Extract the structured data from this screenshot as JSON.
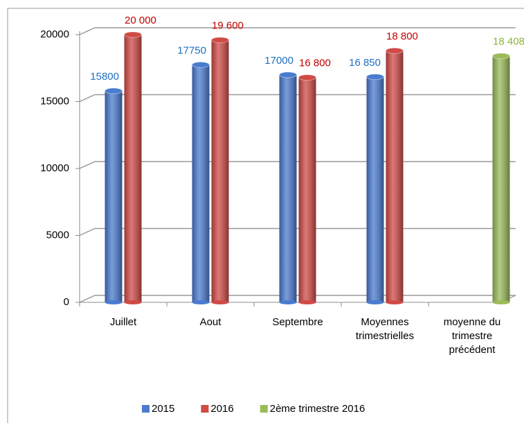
{
  "chart_data": {
    "type": "bar",
    "categories": [
      "Juillet",
      "Aout",
      "Septembre",
      "Moyennes trimestrielles",
      "moyenne du trimestre précédent"
    ],
    "series": [
      {
        "name": "2015",
        "color": "#4a7bd0",
        "label_color": "#1f6fc0",
        "values": [
          15800,
          17750,
          17000,
          16850,
          null
        ],
        "value_labels": [
          "15800",
          "17750",
          "17000",
          "16 850",
          null
        ]
      },
      {
        "name": "2016",
        "color": "#d04a46",
        "label_color": "#c00000",
        "values": [
          20000,
          19600,
          16800,
          18800,
          null
        ],
        "value_labels": [
          "20 000",
          "19 600",
          "16 800",
          "18 800",
          null
        ]
      },
      {
        "name": "2ème trimestre 2016",
        "color": "#9bbb59",
        "label_color": "#8db33a",
        "values": [
          null,
          null,
          null,
          null,
          18408
        ],
        "value_labels": [
          null,
          null,
          null,
          null,
          "18 408"
        ]
      }
    ],
    "ylim": [
      0,
      20000
    ],
    "yticks": [
      0,
      5000,
      10000,
      15000,
      20000
    ],
    "grid": true,
    "legend": "bottom"
  }
}
